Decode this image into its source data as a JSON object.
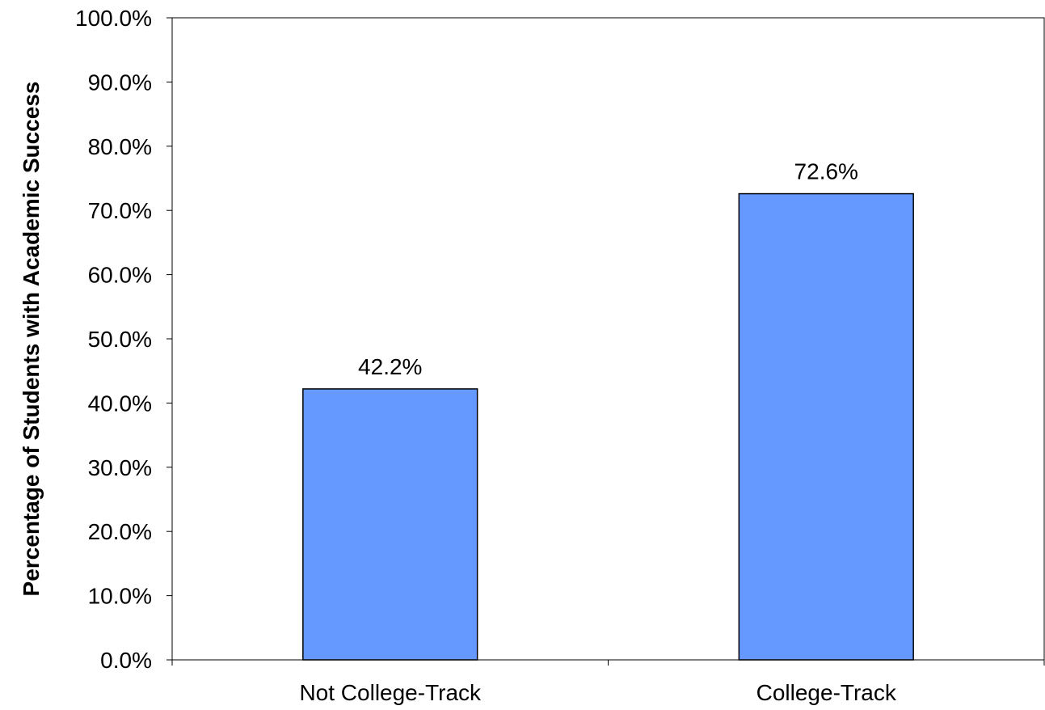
{
  "chart_data": {
    "type": "bar",
    "title": "",
    "xlabel": "",
    "ylabel": "Percentage of Students with Academic Success",
    "categories": [
      "Not College-Track",
      "College-Track"
    ],
    "values": [
      42.2,
      72.6
    ],
    "value_labels": [
      "42.2%",
      "72.6%"
    ],
    "ylim": [
      0,
      100
    ],
    "yticks": [
      0,
      10,
      20,
      30,
      40,
      50,
      60,
      70,
      80,
      90,
      100
    ],
    "ytick_labels": [
      "0.0%",
      "10.0%",
      "20.0%",
      "30.0%",
      "40.0%",
      "50.0%",
      "60.0%",
      "70.0%",
      "80.0%",
      "90.0%",
      "100.0%"
    ],
    "grid": false,
    "legend": "none",
    "colors": {
      "bar_fill": "#6699FF",
      "bar_stroke": "#000000",
      "axis": "#000000"
    }
  }
}
